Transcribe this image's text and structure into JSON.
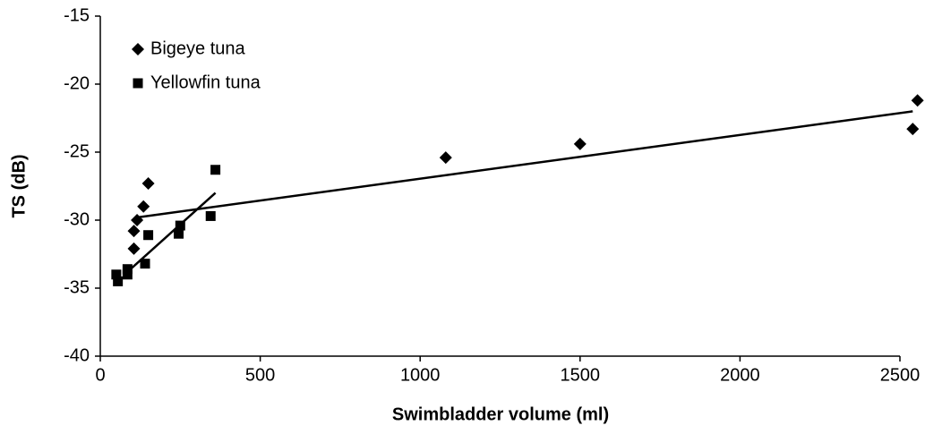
{
  "chart_data": {
    "type": "scatter",
    "xlabel": "Swimbladder volume (ml)",
    "ylabel": "TS (dB)",
    "xlim": [
      0,
      2500
    ],
    "ylim": [
      -40,
      -15
    ],
    "xticks": [
      0,
      500,
      1000,
      1500,
      2000,
      2500
    ],
    "yticks": [
      -40,
      -35,
      -30,
      -25,
      -20,
      -15
    ],
    "legend": "upper left",
    "series": [
      {
        "name": "Bigeye tuna",
        "marker": "diamond",
        "color": "#000000",
        "x": [
          2555,
          2540,
          1500,
          1080,
          150,
          135,
          115,
          105,
          105
        ],
        "values": [
          -21.2,
          -23.3,
          -24.4,
          -25.4,
          -27.3,
          -29.0,
          -30.0,
          -30.8,
          -32.1
        ],
        "trend": {
          "x": [
            115,
            2540
          ],
          "values": [
            -29.8,
            -22.0
          ]
        }
      },
      {
        "name": "Yellowfin tuna",
        "marker": "square",
        "color": "#000000",
        "x": [
          360,
          345,
          250,
          245,
          150,
          140,
          85,
          85,
          50,
          55
        ],
        "values": [
          -26.3,
          -29.7,
          -30.4,
          -31.0,
          -31.1,
          -33.2,
          -33.6,
          -34.0,
          -34.0,
          -34.5
        ],
        "trend": {
          "x": [
            85,
            360
          ],
          "values": [
            -33.8,
            -28.0
          ]
        }
      }
    ]
  }
}
